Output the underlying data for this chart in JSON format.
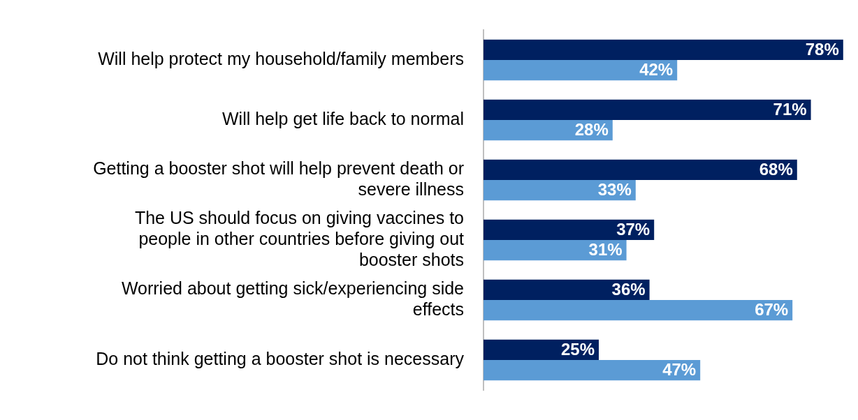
{
  "chart_data": {
    "type": "bar",
    "orientation": "horizontal",
    "categories": [
      "Will help protect my household/family members",
      "Will help get life back to normal",
      "Getting a booster shot will help prevent death or severe illness",
      "The US should focus on giving vaccines to people in other countries before giving out booster shots",
      "Worried about getting sick/experiencing side effects",
      "Do not think getting a booster shot is necessary"
    ],
    "series": [
      {
        "color": "#002060",
        "values": [
          78,
          71,
          68,
          37,
          36,
          25
        ],
        "value_labels": [
          "78%",
          "71%",
          "68%",
          "37%",
          "36%",
          "25%"
        ]
      },
      {
        "color": "#5b9bd5",
        "values": [
          42,
          28,
          33,
          31,
          67,
          47
        ],
        "value_labels": [
          "42%",
          "28%",
          "33%",
          "31%",
          "67%",
          "47%"
        ]
      }
    ],
    "tick_labels": "y",
    "grid": false,
    "legend": false
  }
}
